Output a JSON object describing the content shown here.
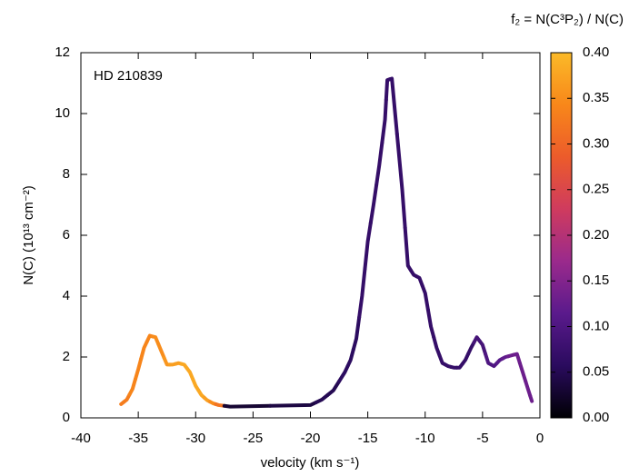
{
  "chart_data": {
    "type": "colored-line",
    "annotation": "HD 210839",
    "xlabel": "velocity (km s⁻¹)",
    "ylabel": "N(C) (10¹³ cm⁻²)",
    "colorbar_label": "f₂ = N(C³P₂) / N(C)",
    "xlim": [
      -40,
      0
    ],
    "xticks": [
      -40,
      -35,
      -30,
      -25,
      -20,
      -15,
      -10,
      -5,
      0
    ],
    "ylim": [
      0,
      12
    ],
    "yticks": [
      0,
      2,
      4,
      6,
      8,
      10,
      12
    ],
    "clim": [
      0,
      0.4
    ],
    "cticks": [
      {
        "value": 0,
        "label": "0.00"
      },
      {
        "value": 0.05,
        "label": "0.05"
      },
      {
        "value": 0.1,
        "label": "0.10"
      },
      {
        "value": 0.15,
        "label": "0.15"
      },
      {
        "value": 0.2,
        "label": "0.20"
      },
      {
        "value": 0.25,
        "label": "0.25"
      },
      {
        "value": 0.3,
        "label": "0.30"
      },
      {
        "value": 0.35,
        "label": "0.35"
      },
      {
        "value": 0.4,
        "label": "0.40"
      }
    ],
    "colormap": [
      "#000004",
      "#2a0b5e",
      "#5a1a8c",
      "#9a2a8c",
      "#cf3b5e",
      "#ec5b2b",
      "#f8871a",
      "#fbba28"
    ],
    "x": [
      -36.5,
      -36,
      -35.5,
      -35,
      -34.5,
      -34,
      -33.5,
      -33,
      -32.5,
      -32,
      -31.5,
      -31,
      -30.5,
      -30,
      -29.5,
      -29,
      -28.5,
      -28,
      -27,
      -20,
      -19,
      -18,
      -17,
      -16.5,
      -16,
      -15.5,
      -15,
      -14.5,
      -14,
      -13.5,
      -13.3,
      -12.9,
      -12,
      -11.5,
      -11,
      -10.5,
      -10,
      -9.5,
      -9,
      -8.5,
      -8,
      -7.5,
      -7,
      -6.5,
      -6,
      -5.5,
      -5,
      -4.5,
      -4,
      -3.5,
      -3,
      -2.5,
      -2,
      -1.5,
      -1,
      -0.7
    ],
    "y": [
      0.45,
      0.6,
      0.95,
      1.6,
      2.3,
      2.7,
      2.65,
      2.2,
      1.75,
      1.75,
      1.8,
      1.75,
      1.5,
      1.05,
      0.75,
      0.58,
      0.48,
      0.42,
      0.37,
      0.42,
      0.6,
      0.9,
      1.5,
      1.9,
      2.6,
      4.0,
      5.8,
      7.0,
      8.3,
      9.8,
      11.1,
      11.15,
      7.5,
      5.0,
      4.7,
      4.6,
      4.1,
      3.0,
      2.3,
      1.8,
      1.7,
      1.65,
      1.65,
      1.9,
      2.3,
      2.65,
      2.4,
      1.8,
      1.7,
      1.9,
      2.0,
      2.05,
      2.1,
      1.5,
      0.9,
      0.55
    ],
    "f2": [
      0.33,
      0.33,
      0.34,
      0.34,
      0.34,
      0.34,
      0.35,
      0.35,
      0.36,
      0.37,
      0.37,
      0.38,
      0.38,
      0.38,
      0.38,
      0.37,
      0.35,
      0.32,
      0.03,
      0.04,
      0.05,
      0.05,
      0.06,
      0.06,
      0.06,
      0.07,
      0.07,
      0.07,
      0.07,
      0.07,
      0.07,
      0.07,
      0.07,
      0.07,
      0.07,
      0.07,
      0.07,
      0.07,
      0.07,
      0.07,
      0.07,
      0.07,
      0.07,
      0.07,
      0.07,
      0.09,
      0.09,
      0.1,
      0.1,
      0.11,
      0.12,
      0.13,
      0.13,
      0.13,
      0.13,
      0.13
    ]
  }
}
